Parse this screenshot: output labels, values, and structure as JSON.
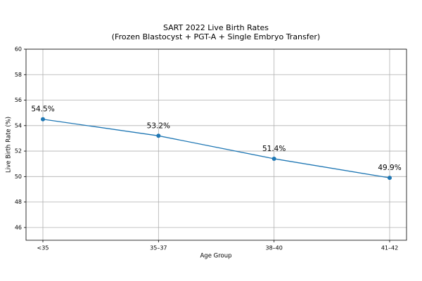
{
  "chart_data": {
    "type": "line",
    "title": "SART 2022 Live Birth Rates",
    "subtitle": "(Frozen Blastocyst + PGT-A + Single Embryo Transfer)",
    "x_label": "Age Group",
    "y_label": "Live Birth Rate (%)",
    "categories": [
      "<35",
      "35–37",
      "38–40",
      "41–42"
    ],
    "series": [
      {
        "name": "Live Birth Rate",
        "color": "#1f77b4",
        "values": [
          54.5,
          53.2,
          51.4,
          49.9
        ],
        "value_labels": [
          "54.5%",
          "53.2%",
          "51.4%",
          "49.9%"
        ]
      }
    ],
    "ylim": [
      45,
      60
    ],
    "yticks": [
      46,
      48,
      50,
      52,
      54,
      56,
      58,
      60
    ],
    "grid": true
  }
}
